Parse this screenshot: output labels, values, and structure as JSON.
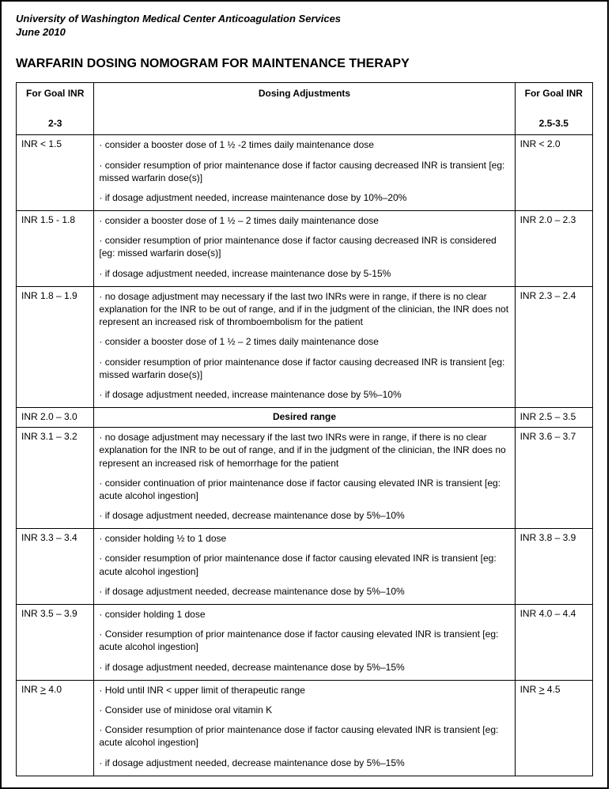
{
  "header": {
    "org": "University of Washington Medical Center Anticoagulation Services",
    "date": "June 2010"
  },
  "title": "WARFARIN DOSING NOMOGRAM FOR MAINTENANCE THERAPY",
  "table": {
    "head": {
      "left_label": "For Goal INR",
      "left_range": "2-3",
      "center": "Dosing Adjustments",
      "right_label": "For Goal INR",
      "right_range": "2.5-3.5"
    },
    "rows": [
      {
        "left": "INR < 1.5",
        "bullets": [
          "· consider a booster dose of 1 ½ -2 times daily maintenance dose",
          "· consider resumption of prior maintenance dose if factor causing decreased INR is  transient  [eg: missed warfarin dose(s)]",
          "· if dosage adjustment needed, increase maintenance dose by 10%–20%"
        ],
        "right": "INR < 2.0"
      },
      {
        "left": "INR 1.5 - 1.8",
        "bullets": [
          "· consider a booster dose of 1 ½  – 2 times daily maintenance dose",
          "· consider resumption of prior maintenance dose if factor causing decreased INR is considered  [eg: missed warfarin dose(s)]",
          "· if dosage adjustment needed, increase maintenance dose by 5-15%"
        ],
        "right": "INR 2.0 – 2.3"
      },
      {
        "left": "INR 1.8 – 1.9",
        "bullets": [
          "· no dosage adjustment may necessary if the last two INRs were in range, if there is no clear explanation for the INR to be out of range, and if in the judgment of the clinician, the INR does not represent an increased risk of thromboembolism for the patient",
          "· consider a booster dose of 1 ½  – 2 times daily maintenance dose",
          "· consider resumption of prior maintenance dose if factor causing decreased INR is transient [eg: missed warfarin dose(s)]",
          "· if dosage adjustment needed, increase maintenance dose by 5%–10%"
        ],
        "right": "INR 2.3 – 2.4"
      },
      {
        "left": "INR 2.0 – 3.0",
        "desired": "Desired range",
        "right": "INR 2.5 – 3.5"
      },
      {
        "left": "INR 3.1 – 3.2",
        "bullets": [
          "· no dosage adjustment may necessary if the last two INRs were in range, if there is no clear explanation for the INR to be out of range, and if in the judgment of the clinician, the INR does no represent an increased risk of hemorrhage for the patient",
          "· consider continuation of prior maintenance dose if factor causing elevated INR is transient [eg: acute alcohol ingestion]",
          "· if dosage adjustment needed, decrease maintenance dose by 5%–10%"
        ],
        "right": "INR 3.6 – 3.7"
      },
      {
        "left": "INR 3.3 – 3.4",
        "bullets": [
          "· consider holding ½ to 1 dose",
          "· consider resumption of prior maintenance dose if factor causing elevated INR is transient [eg: acute alcohol ingestion]",
          "· if dosage adjustment needed, decrease maintenance dose by 5%–10%"
        ],
        "right": "INR 3.8 – 3.9"
      },
      {
        "left": "INR 3.5 – 3.9",
        "bullets": [
          "· consider holding 1 dose",
          "· Consider resumption of prior maintenance dose if factor causing elevated INR is transient [eg: acute alcohol ingestion]",
          "· if dosage adjustment needed, decrease maintenance dose by 5%–15%"
        ],
        "right": "INR 4.0 – 4.4"
      },
      {
        "left": "INR ≥ 4.0",
        "left_underline": true,
        "bullets": [
          "· Hold until INR < upper limit of therapeutic range",
          "· Consider use of minidose oral vitamin K",
          "· Consider resumption of prior maintenance dose if factor causing elevated INR is transient [eg: acute alcohol ingestion]",
          "· if dosage adjustment needed, decrease maintenance dose by 5%–15%"
        ],
        "right": "INR ≥ 4.5",
        "right_underline": true
      }
    ]
  }
}
